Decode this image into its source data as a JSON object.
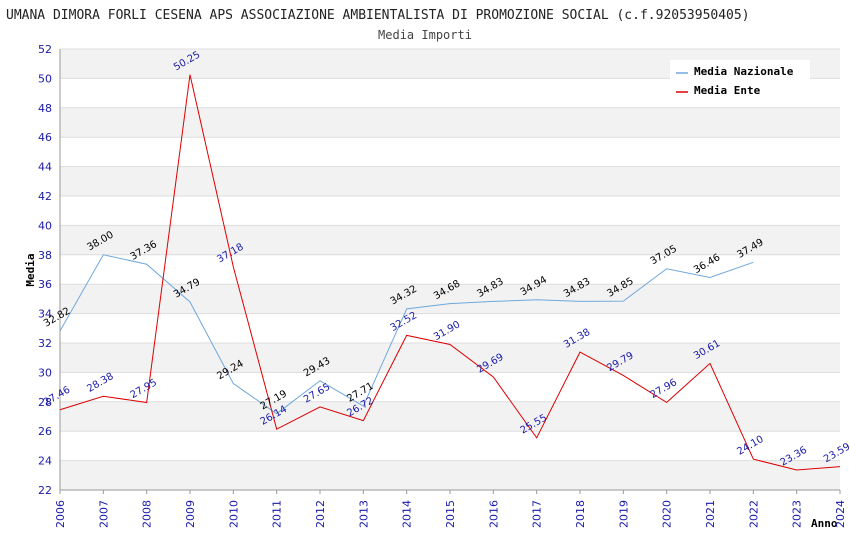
{
  "chart_data": {
    "type": "line",
    "title": "UMANA DIMORA FORLI CESENA APS ASSOCIAZIONE AMBIENTALISTA DI PROMOZIONE SOCIAL (c.f.92053950405)",
    "subtitle": "Media Importi",
    "xlabel": "Anno",
    "ylabel": "Media",
    "ylim": [
      22,
      52
    ],
    "ystep": 2,
    "x": [
      "2006",
      "2007",
      "2008",
      "2009",
      "2010",
      "2011",
      "2012",
      "2013",
      "2014",
      "2015",
      "2016",
      "2017",
      "2018",
      "2019",
      "2020",
      "2021",
      "2022",
      "2023",
      "2024"
    ],
    "series": [
      {
        "name": "Media Nazionale",
        "color": "#6fa8dc",
        "label_color": "#000000",
        "values": [
          32.82,
          38.0,
          37.36,
          34.79,
          29.24,
          27.19,
          29.43,
          27.71,
          34.32,
          34.68,
          34.83,
          34.94,
          34.83,
          34.85,
          37.05,
          36.46,
          37.49,
          null,
          null
        ]
      },
      {
        "name": "Media Ente",
        "color": "#dd0000",
        "label_color": "#1a1aaa",
        "values": [
          27.46,
          28.38,
          27.95,
          50.25,
          37.18,
          26.14,
          27.65,
          26.72,
          32.52,
          31.9,
          29.69,
          25.55,
          31.38,
          29.79,
          27.96,
          30.61,
          24.1,
          23.36,
          23.59
        ]
      }
    ],
    "legend_position": "top-right",
    "grid": true
  }
}
